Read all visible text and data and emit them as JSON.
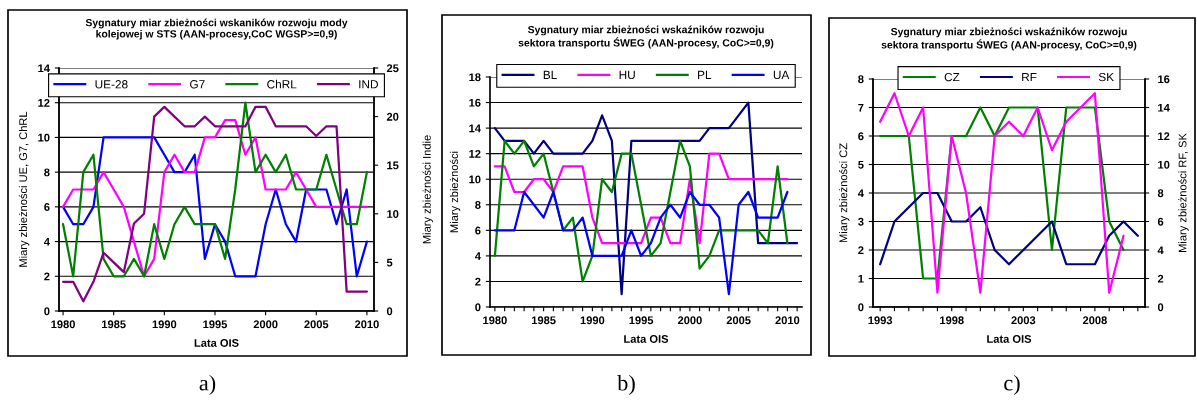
{
  "chart_data": [
    {
      "type": "line",
      "title": "Sygnatury miar zbieżności wskaników rozwoju mody\nkolejowej w STS (AAN-procesy,CoC WGSP>=0,9)",
      "xlabel": "Lata OIS",
      "ylabel": "Miary zbieżności UE, G7, ChRL",
      "y2label": "Miary zbieżności Indie",
      "x": [
        1980,
        1981,
        1982,
        1983,
        1984,
        1985,
        1986,
        1987,
        1988,
        1989,
        1990,
        1991,
        1992,
        1993,
        1994,
        1995,
        1996,
        1997,
        1998,
        1999,
        2000,
        2001,
        2002,
        2003,
        2004,
        2005,
        2006,
        2007,
        2008,
        2009,
        2010
      ],
      "xlim": [
        1979.6,
        2010.7
      ],
      "xticks": [
        1980,
        1985,
        1990,
        1995,
        2000,
        2005,
        2010
      ],
      "ylim": [
        0,
        14
      ],
      "yticks": [
        0,
        2,
        4,
        6,
        8,
        10,
        12,
        14
      ],
      "y2lim": [
        0,
        25
      ],
      "y2ticks": [
        0,
        5,
        10,
        15,
        20,
        25
      ],
      "grid": "y",
      "legend": "top",
      "annotations": [
        "a)"
      ],
      "series": [
        {
          "name": "UE-28",
          "color": "#0000ff",
          "values": [
            6,
            5,
            5,
            6,
            10,
            10,
            10,
            10,
            10,
            10,
            9,
            8,
            8,
            9,
            3,
            5,
            4,
            2,
            2,
            2,
            5,
            7,
            5,
            4,
            7,
            7,
            7,
            5,
            7,
            2,
            4
          ]
        },
        {
          "name": "G7",
          "color": "#ff00ff",
          "values": [
            6,
            7,
            7,
            7,
            8,
            7,
            6,
            4,
            2,
            3,
            8,
            9,
            8,
            8,
            10,
            10,
            11,
            11,
            9,
            10,
            7,
            7,
            7,
            8,
            7,
            6,
            6,
            6,
            6,
            6,
            6
          ]
        },
        {
          "name": "ChRL",
          "color": "#008000",
          "values": [
            5,
            2,
            8,
            9,
            3,
            2,
            2,
            3,
            2,
            5,
            3,
            5,
            6,
            5,
            5,
            5,
            3,
            7,
            12,
            8,
            9,
            8,
            9,
            7,
            7,
            7,
            9,
            7,
            5,
            5,
            8
          ]
        },
        {
          "name": "IND",
          "color": "#800080",
          "axis": "y2",
          "values": [
            3,
            3,
            1,
            3,
            6,
            5,
            4,
            9,
            10,
            20,
            21,
            20,
            19,
            19,
            20,
            19,
            19,
            19,
            19,
            21,
            21,
            19,
            19,
            19,
            19,
            18,
            19,
            19,
            2,
            2,
            2
          ]
        }
      ]
    },
    {
      "type": "line",
      "title": "Sygnatury miar zbieżności wskaźników rozwoju\nsektora transportu ŚWEG (AAN-procesy, CoC>=0,9)",
      "xlabel": "Lata OIS",
      "ylabel": "Miary zbieżności",
      "x": [
        1980,
        1981,
        1982,
        1983,
        1984,
        1985,
        1986,
        1987,
        1988,
        1989,
        1990,
        1991,
        1992,
        1993,
        1994,
        1995,
        1996,
        1997,
        1998,
        1999,
        2000,
        2001,
        2002,
        2003,
        2004,
        2005,
        2006,
        2007,
        2008,
        2009,
        2010
      ],
      "xlim": [
        1979.5,
        2011.5
      ],
      "xticks": [
        1980,
        {
          "value": 1981,
          "label": null
        },
        {
          "value": 1982,
          "label": null
        },
        {
          "value": 1983,
          "label": null
        },
        {
          "value": 1984,
          "label": null
        },
        1985,
        {
          "value": 1986,
          "label": null
        },
        {
          "value": 1987,
          "label": null
        },
        {
          "value": 1988,
          "label": null
        },
        {
          "value": 1989,
          "label": null
        },
        1990,
        {
          "value": 1991,
          "label": null
        },
        {
          "value": 1992,
          "label": null
        },
        {
          "value": 1993,
          "label": null
        },
        {
          "value": 1994,
          "label": null
        },
        1995,
        {
          "value": 1996,
          "label": null
        },
        {
          "value": 1997,
          "label": null
        },
        {
          "value": 1998,
          "label": null
        },
        {
          "value": 1999,
          "label": null
        },
        2000,
        {
          "value": 2001,
          "label": null
        },
        {
          "value": 2002,
          "label": null
        },
        {
          "value": 2003,
          "label": null
        },
        {
          "value": 2004,
          "label": null
        },
        2005,
        {
          "value": 2006,
          "label": null
        },
        {
          "value": 2007,
          "label": null
        },
        {
          "value": 2008,
          "label": null
        },
        {
          "value": 2009,
          "label": null
        },
        2010,
        {
          "value": 2011,
          "label": null
        }
      ],
      "ylim": [
        0,
        18
      ],
      "yticks": [
        0,
        2,
        4,
        6,
        8,
        10,
        12,
        14,
        16,
        18
      ],
      "grid": "y",
      "legend": "top",
      "annotations": [
        "b)"
      ],
      "series": [
        {
          "name": "BL",
          "color": "#000080",
          "x": [
            1980,
            1981,
            1982,
            1983,
            1984,
            1985,
            1986,
            1987,
            1988,
            1989,
            1990,
            1991,
            1992,
            1993,
            1994,
            1995,
            1996,
            1997,
            1998,
            1999,
            2000,
            2001,
            2002,
            2003,
            2004,
            2005,
            2006,
            2007,
            2008,
            2009,
            2010,
            2011
          ],
          "values": [
            14,
            13,
            13,
            13,
            12,
            13,
            12,
            12,
            12,
            12,
            13,
            15,
            13,
            1,
            13,
            13,
            13,
            13,
            13,
            13,
            13,
            13,
            14,
            14,
            14,
            15,
            16,
            5,
            5,
            5,
            5,
            5
          ]
        },
        {
          "name": "HU",
          "color": "#ff00ff",
          "values": [
            11,
            11,
            9,
            9,
            10,
            10,
            9,
            11,
            11,
            11,
            7,
            5,
            5,
            5,
            5,
            5,
            7,
            7,
            5,
            5,
            10,
            5,
            12,
            12,
            10,
            10,
            10,
            10,
            10,
            10,
            10
          ]
        },
        {
          "name": "PL",
          "color": "#008000",
          "values": [
            4,
            13,
            12,
            13,
            11,
            12,
            9,
            6,
            7,
            2,
            4,
            10,
            9,
            12,
            12,
            8,
            4,
            5,
            9,
            13,
            11,
            3,
            4,
            6,
            6,
            6,
            6,
            6,
            5,
            11,
            5
          ]
        },
        {
          "name": "UA",
          "color": "#0000ff",
          "values": [
            6,
            6,
            6,
            9,
            8,
            7,
            9,
            6,
            6,
            7,
            4,
            4,
            4,
            4,
            6,
            4,
            5,
            7,
            8,
            7,
            9,
            8,
            8,
            7,
            1,
            8,
            9,
            7,
            7,
            7,
            9
          ]
        }
      ]
    },
    {
      "type": "line",
      "title": "Sygnatury miar zbieżności wskaźników rozwoju\nsektora transportu ŚWEG (AAN-procesy, CoC>=0,9)",
      "xlabel": "Lata OIS",
      "ylabel": "Miary zbieżności CZ",
      "y2label": "Miary zbieżności RF, SK",
      "x": [
        1993,
        1994,
        1995,
        1996,
        1997,
        1998,
        1999,
        2000,
        2001,
        2002,
        2003,
        2004,
        2005,
        2006,
        2007,
        2008,
        2009,
        2010
      ],
      "xlim": [
        1992.5,
        2011.5
      ],
      "xticks": [
        1993,
        {
          "value": 1994,
          "label": null
        },
        {
          "value": 1995,
          "label": null
        },
        {
          "value": 1996,
          "label": null
        },
        {
          "value": 1997,
          "label": null
        },
        1998,
        {
          "value": 1999,
          "label": null
        },
        {
          "value": 2000,
          "label": null
        },
        {
          "value": 2001,
          "label": null
        },
        {
          "value": 2002,
          "label": null
        },
        2003,
        {
          "value": 2004,
          "label": null
        },
        {
          "value": 2005,
          "label": null
        },
        {
          "value": 2006,
          "label": null
        },
        {
          "value": 2007,
          "label": null
        },
        2008,
        {
          "value": 2009,
          "label": null
        },
        {
          "value": 2010,
          "label": null
        },
        {
          "value": 2011,
          "label": null
        }
      ],
      "ylim": [
        0,
        8
      ],
      "yticks": [
        0,
        1,
        2,
        3,
        4,
        5,
        6,
        7,
        8
      ],
      "y2lim": [
        0,
        16
      ],
      "y2ticks": [
        0,
        2,
        4,
        6,
        8,
        10,
        12,
        14,
        16
      ],
      "grid": "y",
      "legend": "top",
      "annotations": [
        "c)"
      ],
      "series": [
        {
          "name": "CZ",
          "color": "#008000",
          "values": [
            6,
            6,
            6,
            1,
            1,
            6,
            6,
            7,
            6,
            7,
            7,
            7,
            2,
            7,
            7,
            7,
            3,
            2
          ]
        },
        {
          "name": "RF",
          "color": "#000080",
          "axis": "y2",
          "x": [
            1993,
            1994,
            1995,
            1996,
            1997,
            1998,
            1999,
            2000,
            2001,
            2002,
            2003,
            2004,
            2005,
            2006,
            2007,
            2008,
            2009,
            2010,
            2011
          ],
          "values": [
            3,
            6,
            7,
            8,
            8,
            6,
            6,
            7,
            4,
            3,
            4,
            5,
            6,
            3,
            3,
            3,
            5,
            6,
            5
          ]
        },
        {
          "name": "SK",
          "color": "#ff00ff",
          "axis": "y2",
          "values": [
            13,
            15,
            12,
            14,
            1,
            12,
            8,
            1,
            12,
            13,
            12,
            14,
            11,
            13,
            14,
            15,
            1,
            5
          ]
        }
      ]
    }
  ]
}
